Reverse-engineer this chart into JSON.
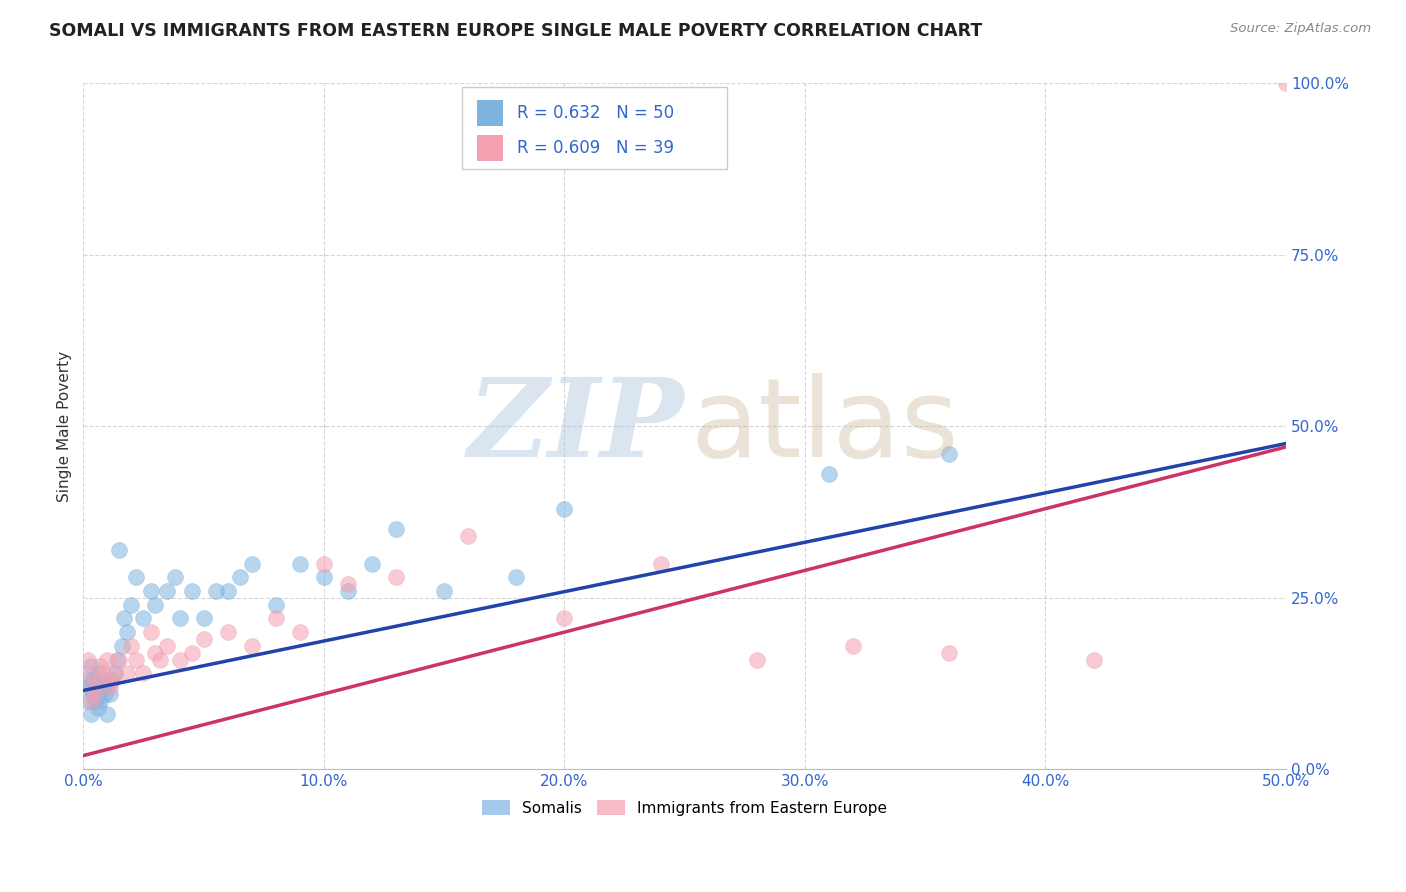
{
  "title": "SOMALI VS IMMIGRANTS FROM EASTERN EUROPE SINGLE MALE POVERTY CORRELATION CHART",
  "source": "Source: ZipAtlas.com",
  "xlabel_ticks": [
    "0.0%",
    "10.0%",
    "20.0%",
    "30.0%",
    "40.0%",
    "50.0%"
  ],
  "ylabel_ticks": [
    "0.0%",
    "25.0%",
    "50.0%",
    "75.0%",
    "100.0%"
  ],
  "xlabel_tick_vals": [
    0.0,
    0.1,
    0.2,
    0.3,
    0.4,
    0.5
  ],
  "ylabel_tick_vals": [
    0.0,
    0.25,
    0.5,
    0.75,
    1.0
  ],
  "ylabel_label": "Single Male Poverty",
  "legend_label1": "Somalis",
  "legend_label2": "Immigrants from Eastern Europe",
  "R1": 0.632,
  "N1": 50,
  "R2": 0.609,
  "N2": 39,
  "color1": "#7EB3E0",
  "color2": "#F4A0B0",
  "line_color1": "#2244AA",
  "line_color2": "#CC3366",
  "somali_x": [
    0.001,
    0.002,
    0.002,
    0.003,
    0.003,
    0.004,
    0.004,
    0.005,
    0.005,
    0.006,
    0.006,
    0.007,
    0.007,
    0.008,
    0.009,
    0.01,
    0.01,
    0.011,
    0.012,
    0.013,
    0.014,
    0.015,
    0.016,
    0.017,
    0.018,
    0.02,
    0.022,
    0.025,
    0.028,
    0.03,
    0.035,
    0.038,
    0.04,
    0.045,
    0.05,
    0.055,
    0.06,
    0.065,
    0.07,
    0.08,
    0.09,
    0.1,
    0.11,
    0.12,
    0.13,
    0.15,
    0.18,
    0.2,
    0.31,
    0.36
  ],
  "somali_y": [
    0.13,
    0.1,
    0.12,
    0.08,
    0.15,
    0.11,
    0.13,
    0.1,
    0.12,
    0.09,
    0.14,
    0.12,
    0.1,
    0.13,
    0.11,
    0.12,
    0.08,
    0.11,
    0.13,
    0.14,
    0.16,
    0.32,
    0.18,
    0.22,
    0.2,
    0.24,
    0.28,
    0.22,
    0.26,
    0.24,
    0.26,
    0.28,
    0.22,
    0.26,
    0.22,
    0.26,
    0.26,
    0.28,
    0.3,
    0.24,
    0.3,
    0.28,
    0.26,
    0.3,
    0.35,
    0.26,
    0.28,
    0.38,
    0.43,
    0.46
  ],
  "ee_x": [
    0.001,
    0.002,
    0.003,
    0.004,
    0.005,
    0.006,
    0.007,
    0.008,
    0.01,
    0.011,
    0.012,
    0.013,
    0.015,
    0.018,
    0.02,
    0.022,
    0.025,
    0.028,
    0.03,
    0.032,
    0.035,
    0.04,
    0.045,
    0.05,
    0.06,
    0.07,
    0.08,
    0.09,
    0.1,
    0.11,
    0.13,
    0.16,
    0.2,
    0.24,
    0.28,
    0.32,
    0.36,
    0.42,
    0.5
  ],
  "ee_y": [
    0.14,
    0.16,
    0.1,
    0.12,
    0.11,
    0.13,
    0.15,
    0.14,
    0.16,
    0.12,
    0.13,
    0.14,
    0.16,
    0.14,
    0.18,
    0.16,
    0.14,
    0.2,
    0.17,
    0.16,
    0.18,
    0.16,
    0.17,
    0.19,
    0.2,
    0.18,
    0.22,
    0.2,
    0.3,
    0.27,
    0.28,
    0.34,
    0.22,
    0.3,
    0.16,
    0.18,
    0.17,
    0.16,
    1.0
  ],
  "somali_line_x": [
    0.0,
    0.5
  ],
  "somali_line_y": [
    0.115,
    0.475
  ],
  "ee_line_x": [
    0.0,
    0.5
  ],
  "ee_line_y": [
    0.02,
    0.47
  ],
  "xlim": [
    0.0,
    0.5
  ],
  "ylim": [
    0.0,
    1.0
  ],
  "background_color": "#ffffff",
  "grid_color": "#cccccc"
}
